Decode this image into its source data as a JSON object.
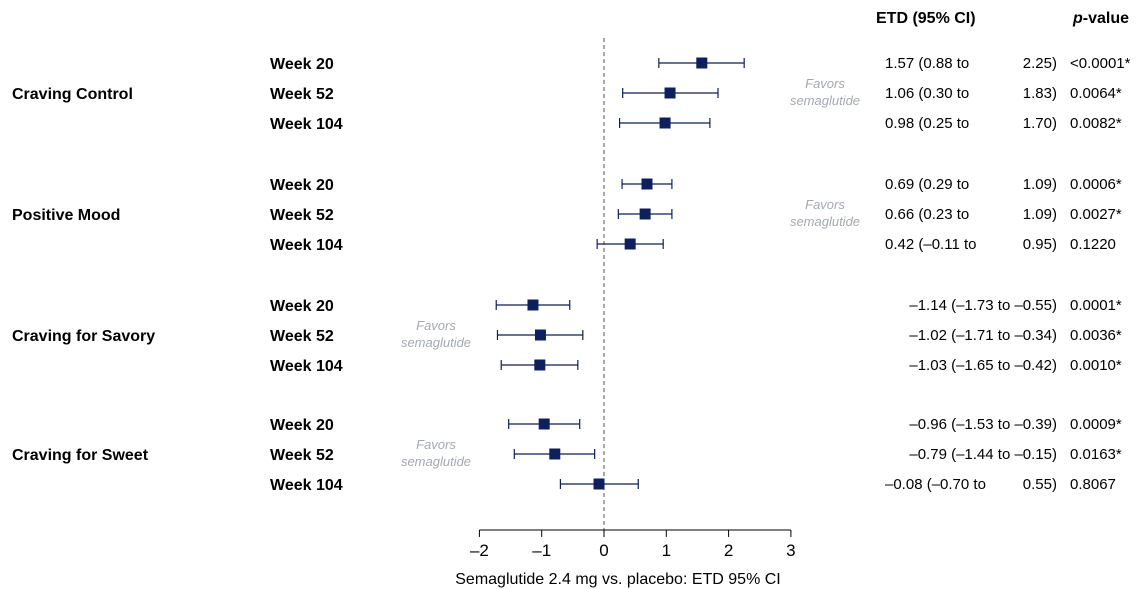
{
  "chart_data": {
    "type": "forest",
    "xlabel": "Semaglutide 2.4 mg vs. placebo: ETD 95% CI",
    "xlim": [
      -2,
      3
    ],
    "xticks": [
      "–2",
      "–1",
      "0",
      "1",
      "2",
      "3"
    ],
    "reference_line": 0,
    "header_etd": "ETD (95% CI)",
    "header_p_italic": "p",
    "header_p_rest": "-value",
    "marker_color": "#0d1f5c",
    "favors_color": "#a3a9b3",
    "groups": [
      {
        "outcome": "Craving Control",
        "favors": [
          "Favors",
          "semaglutide"
        ],
        "favors_side": "right",
        "rows": [
          {
            "label": "Week 20",
            "est": 1.57,
            "lo": 0.88,
            "hi": 2.25,
            "ci_text": "1.57 (0.88 to",
            "ci_hi_text": "2.25)",
            "p": "<0.0001*"
          },
          {
            "label": "Week 52",
            "est": 1.06,
            "lo": 0.3,
            "hi": 1.83,
            "ci_text": "1.06 (0.30 to",
            "ci_hi_text": "1.83)",
            "p": "0.0064*"
          },
          {
            "label": "Week 104",
            "est": 0.98,
            "lo": 0.25,
            "hi": 1.7,
            "ci_text": "0.98 (0.25 to",
            "ci_hi_text": "1.70)",
            "p": "0.0082*"
          }
        ]
      },
      {
        "outcome": "Positive Mood",
        "favors": [
          "Favors",
          "semaglutide"
        ],
        "favors_side": "right",
        "rows": [
          {
            "label": "Week 20",
            "est": 0.69,
            "lo": 0.29,
            "hi": 1.09,
            "ci_text": "0.69 (0.29 to",
            "ci_hi_text": "1.09)",
            "p": "0.0006*"
          },
          {
            "label": "Week 52",
            "est": 0.66,
            "lo": 0.23,
            "hi": 1.09,
            "ci_text": "0.66 (0.23 to",
            "ci_hi_text": "1.09)",
            "p": "0.0027*"
          },
          {
            "label": "Week 104",
            "est": 0.42,
            "lo": -0.11,
            "hi": 0.95,
            "ci_text": "0.42 (–0.11 to",
            "ci_hi_text": "0.95)",
            "p": "0.1220"
          }
        ]
      },
      {
        "outcome": "Craving for Savory",
        "favors": [
          "Favors",
          "semaglutide"
        ],
        "favors_side": "left",
        "rows": [
          {
            "label": "Week 20",
            "est": -1.14,
            "lo": -1.73,
            "hi": -0.55,
            "ci_text": "–1.14 (–1.73 to –0.55)",
            "ci_hi_text": "",
            "p": "0.0001*"
          },
          {
            "label": "Week 52",
            "est": -1.02,
            "lo": -1.71,
            "hi": -0.34,
            "ci_text": "–1.02 (–1.71 to –0.34)",
            "ci_hi_text": "",
            "p": "0.0036*"
          },
          {
            "label": "Week 104",
            "est": -1.03,
            "lo": -1.65,
            "hi": -0.42,
            "ci_text": "–1.03 (–1.65 to –0.42)",
            "ci_hi_text": "",
            "p": "0.0010*"
          }
        ]
      },
      {
        "outcome": "Craving for Sweet",
        "favors": [
          "Favors",
          "semaglutide"
        ],
        "favors_side": "left",
        "rows": [
          {
            "label": "Week 20",
            "est": -0.96,
            "lo": -1.53,
            "hi": -0.39,
            "ci_text": "–0.96 (–1.53 to –0.39)",
            "ci_hi_text": "",
            "p": "0.0009*"
          },
          {
            "label": "Week 52",
            "est": -0.79,
            "lo": -1.44,
            "hi": -0.15,
            "ci_text": "–0.79 (–1.44 to –0.15)",
            "ci_hi_text": "",
            "p": "0.0163*"
          },
          {
            "label": "Week 104",
            "est": -0.08,
            "lo": -0.7,
            "hi": 0.55,
            "ci_text": "–0.08 (–0.70 to",
            "ci_hi_text": "0.55)",
            "p": "0.8067"
          }
        ]
      }
    ]
  }
}
